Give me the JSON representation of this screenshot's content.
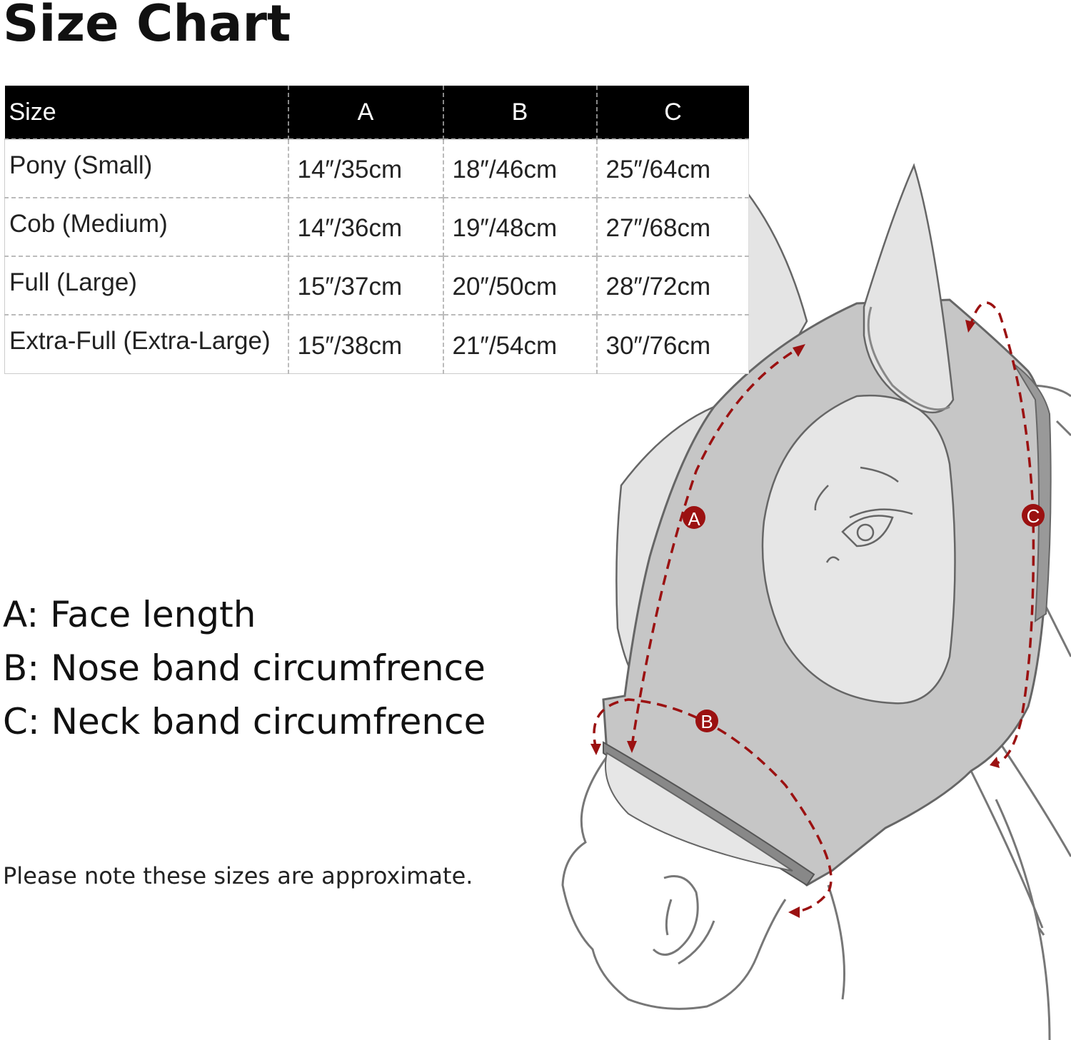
{
  "title": "Size Chart",
  "table": {
    "headers": [
      "Size",
      "A",
      "B",
      "C"
    ],
    "rows": [
      [
        "Pony (Small)",
        "14″/35cm",
        "18″/46cm",
        "25″/64cm"
      ],
      [
        "Cob (Medium)",
        "14″/36cm",
        "19″/48cm",
        "27″/68cm"
      ],
      [
        "Full (Large)",
        "15″/37cm",
        "20″/50cm",
        "28″/72cm"
      ],
      [
        "Extra-Full (Extra-Large)",
        "15″/38cm",
        "21″/54cm",
        "30″/76cm"
      ]
    ]
  },
  "legend": {
    "a": "A: Face length",
    "b": "B: Nose band circumfrence",
    "c": "C: Neck band circumfrence"
  },
  "note": "Please note these sizes are approximate.",
  "illustration": {
    "markers": [
      "A",
      "B",
      "C"
    ],
    "colors": {
      "mask": "#c6c6c6",
      "opening": "#e8e8e8",
      "measure": "#9b1111",
      "outline": "#6a6a6a"
    }
  }
}
